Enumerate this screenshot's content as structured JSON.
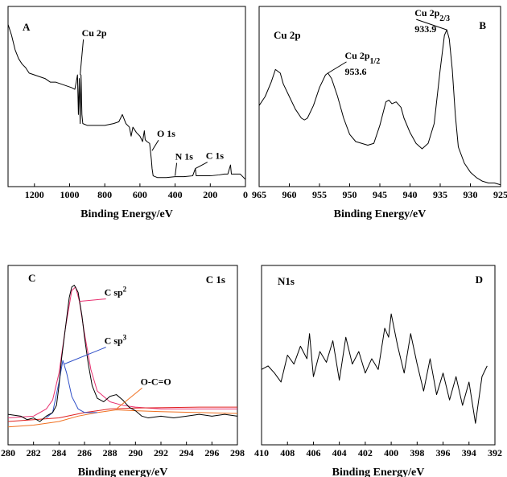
{
  "chart_data": [
    {
      "type": "line",
      "panel": "A",
      "x_label": "Binding Energy/eV",
      "xlim": [
        1350,
        0
      ],
      "ylim": [
        0,
        100
      ],
      "xticks": [
        1200,
        1000,
        800,
        600,
        400,
        200,
        0
      ],
      "series": [
        {
          "color": "#000000",
          "x": [
            1350,
            1330,
            1310,
            1290,
            1270,
            1250,
            1230,
            1200,
            1170,
            1140,
            1110,
            1080,
            1050,
            1020,
            990,
            970,
            955,
            950,
            945,
            940,
            935,
            930,
            925,
            900,
            850,
            800,
            750,
            720,
            700,
            680,
            660,
            650,
            640,
            620,
            600,
            585,
            575,
            570,
            560,
            545,
            535,
            531,
            525,
            500,
            450,
            400,
            350,
            300,
            285,
            280,
            250,
            200,
            150,
            120,
            100,
            85,
            80,
            60,
            30,
            10,
            0
          ],
          "values": [
            90,
            84,
            76,
            71,
            68,
            66,
            63,
            62,
            61,
            60,
            58,
            58,
            57,
            56,
            55,
            54,
            62,
            40,
            60,
            35,
            62,
            40,
            35,
            34,
            34,
            34,
            35,
            36,
            40,
            35,
            33,
            28,
            33,
            30,
            28,
            25,
            31,
            26,
            25,
            24,
            15,
            10,
            6,
            5,
            5,
            5.5,
            5.5,
            6,
            10,
            6,
            6,
            6,
            6.5,
            7,
            7,
            12,
            7,
            7,
            7,
            5,
            4
          ]
        }
      ],
      "annotations": [
        {
          "label": "Cu 2p",
          "x": 940,
          "y": 62,
          "color": "#000000"
        },
        {
          "label": "O 1s",
          "x": 531,
          "y": 20,
          "color": "#000000"
        },
        {
          "label": "N 1s",
          "x": 400,
          "y": 6,
          "color": "#000000"
        },
        {
          "label": "C 1s",
          "x": 285,
          "y": 10,
          "color": "#000000"
        }
      ]
    },
    {
      "type": "line",
      "panel": "B",
      "title": "Cu 2p",
      "x_label": "Binding Energy/eV",
      "xlim": [
        965,
        925
      ],
      "ylim": [
        0,
        100
      ],
      "xticks": [
        965,
        960,
        955,
        950,
        945,
        940,
        935,
        930,
        925
      ],
      "annotate_values": true,
      "series": [
        {
          "color": "#000000",
          "x": [
            965,
            964,
            963,
            962.3,
            961.5,
            961,
            960,
            959,
            958,
            957.5,
            957,
            956,
            955,
            954,
            953.6,
            953,
            952,
            951,
            950,
            949,
            948,
            947,
            946,
            945,
            944,
            943.5,
            943,
            942.3,
            941.5,
            941,
            940,
            939,
            938,
            937,
            936,
            935,
            934.3,
            933.9,
            933.5,
            933,
            932.5,
            932,
            931,
            930,
            929,
            928,
            927,
            926,
            925
          ],
          "values": [
            45,
            50,
            58,
            65,
            63,
            57,
            50,
            43,
            38,
            37,
            38,
            45,
            55,
            62,
            63,
            60,
            50,
            38,
            29,
            25,
            24,
            23,
            24,
            34,
            47,
            48,
            46,
            47,
            44,
            38,
            30,
            24,
            21,
            24,
            35,
            65,
            84,
            87,
            82,
            65,
            40,
            22,
            13,
            8,
            5,
            3,
            2,
            2,
            1
          ]
        }
      ],
      "annotations": [
        {
          "label": "Cu 2p",
          "sub": "1/2",
          "x": 953.6,
          "y": 63,
          "color": "#000000"
        },
        {
          "label": "Cu 2p",
          "sub": "2/3",
          "x": 933.9,
          "y": 87,
          "color": "#000000"
        }
      ]
    },
    {
      "type": "line",
      "panel": "C",
      "title": "C 1s",
      "x_label": "Binding energy/eV",
      "xlim": [
        280,
        298
      ],
      "ylim": [
        0,
        100
      ],
      "xticks": [
        280,
        282,
        284,
        286,
        288,
        290,
        292,
        294,
        296,
        298
      ],
      "series": [
        {
          "color": "#e8306f",
          "x": [
            280,
            282,
            283,
            283.5,
            284,
            284.5,
            285,
            285.3,
            285.6,
            286,
            286.5,
            287,
            288,
            289,
            290,
            292,
            295,
            298
          ],
          "values": [
            15,
            16,
            20,
            25,
            40,
            65,
            86,
            88,
            80,
            62,
            42,
            30,
            24,
            22,
            21,
            20,
            20,
            20
          ]
        },
        {
          "color": "#e02020",
          "x": [
            280,
            282,
            284,
            286,
            288,
            290,
            295,
            298
          ],
          "values": [
            13,
            14,
            15,
            18,
            20,
            20.5,
            21,
            21
          ]
        },
        {
          "color": "#f07020",
          "x": [
            280,
            282,
            284,
            285.5,
            287,
            288.5,
            290,
            292,
            295,
            298
          ],
          "values": [
            10,
            11,
            13,
            16,
            18,
            19.5,
            19,
            18.5,
            18,
            17.5
          ]
        },
        {
          "color": "#3050c8",
          "x": [
            283,
            283.5,
            284,
            284.3,
            284.6,
            285,
            285.5,
            286,
            287
          ],
          "values": [
            15,
            18,
            35,
            47,
            40,
            27,
            20,
            18,
            18
          ]
        },
        {
          "color": "#000000",
          "x": [
            280,
            281,
            281.5,
            282,
            282.5,
            283,
            283.5,
            283.8,
            284,
            284.2,
            284.5,
            284.8,
            285,
            285.2,
            285.5,
            285.8,
            286,
            286.3,
            286.6,
            287,
            287.5,
            288,
            288.5,
            289,
            289.5,
            290,
            290.5,
            291,
            292,
            293,
            294,
            295,
            296,
            297,
            298
          ],
          "values": [
            17,
            16,
            14,
            15,
            13,
            16,
            18,
            22,
            33,
            48,
            65,
            82,
            88,
            89,
            85,
            72,
            60,
            45,
            33,
            26,
            24,
            27,
            28,
            25,
            21,
            19,
            16,
            15,
            16,
            15,
            16,
            17,
            16,
            17,
            16
          ]
        }
      ],
      "annotations": [
        {
          "label": "C sp",
          "sup": "2",
          "x": 285.6,
          "y": 80,
          "color": "#e8306f"
        },
        {
          "label": "C sp",
          "sup": "3",
          "x": 284.4,
          "y": 45,
          "color": "#3050c8"
        },
        {
          "label": "O-C=O",
          "x": 288.5,
          "y": 20,
          "color": "#f07020"
        }
      ]
    },
    {
      "type": "line",
      "panel": "D",
      "title": "N1s",
      "x_label": "Binding Energy/eV",
      "xlim": [
        410,
        392
      ],
      "ylim": [
        0,
        100
      ],
      "xticks": [
        410,
        408,
        406,
        404,
        402,
        400,
        398,
        396,
        394,
        392
      ],
      "series": [
        {
          "color": "#000000",
          "x": [
            410,
            409.5,
            409,
            408.5,
            408,
            407.5,
            407,
            406.5,
            406.3,
            406,
            405.5,
            405,
            404.5,
            404,
            403.5,
            403,
            402.5,
            402,
            401.5,
            401,
            400.5,
            400.2,
            400,
            399.5,
            399,
            398.5,
            398,
            397.5,
            397,
            396.5,
            396,
            395.5,
            395,
            394.5,
            394,
            393.5,
            393,
            392.6
          ],
          "values": [
            42,
            44,
            40,
            35,
            50,
            45,
            55,
            48,
            62,
            38,
            52,
            46,
            58,
            36,
            60,
            45,
            52,
            40,
            48,
            42,
            65,
            60,
            73,
            55,
            40,
            62,
            45,
            30,
            48,
            28,
            40,
            25,
            38,
            22,
            35,
            12,
            38,
            44
          ]
        }
      ],
      "annotations": []
    }
  ]
}
